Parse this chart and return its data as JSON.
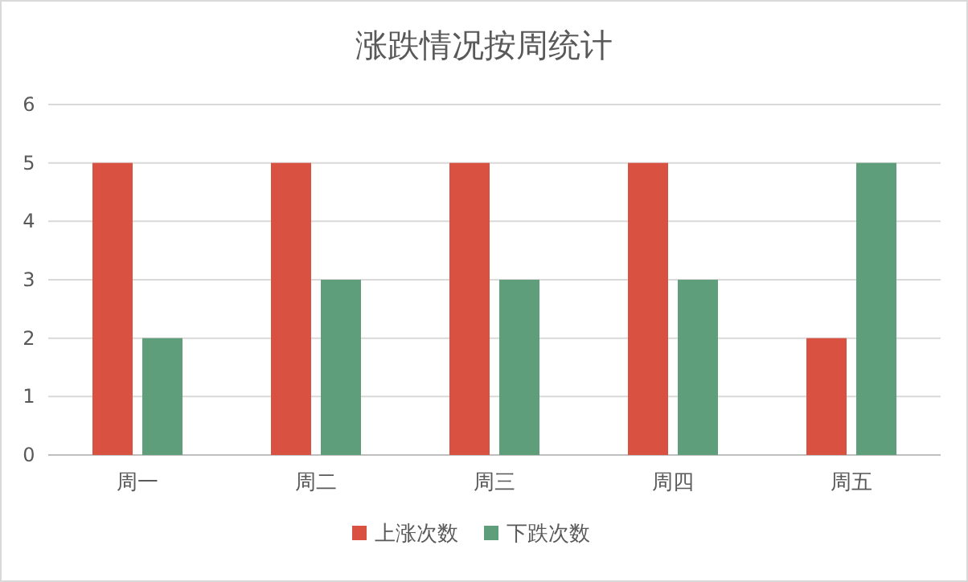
{
  "chart_data": {
    "type": "bar",
    "title": "涨跌情况按周统计",
    "categories": [
      "周一",
      "周二",
      "周三",
      "周四",
      "周五"
    ],
    "series": [
      {
        "name": "上涨次数",
        "color": "#d95140",
        "values": [
          5,
          5,
          5,
          5,
          2
        ]
      },
      {
        "name": "下跌次数",
        "color": "#5f9e7a",
        "values": [
          2,
          3,
          3,
          3,
          5
        ]
      }
    ],
    "ylim": [
      0,
      6
    ],
    "yticks": [
      0,
      1,
      2,
      3,
      4,
      5,
      6
    ],
    "grid": "y",
    "legend": "bottom"
  }
}
